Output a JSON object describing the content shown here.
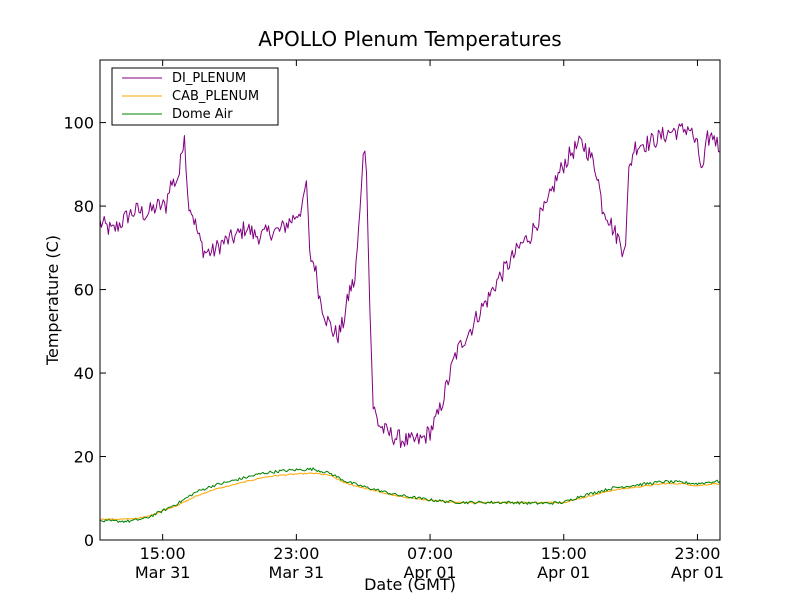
{
  "chart_data": {
    "type": "line",
    "title": "APOLLO Plenum Temperatures",
    "xlabel": "Date (GMT)",
    "ylabel": "Temperature (C)",
    "x_unit": "hours since Mar 31 00:00 GMT",
    "xlim": [
      11.25,
      48.35
    ],
    "ylim": [
      0,
      115
    ],
    "yticks": [
      0,
      20,
      40,
      60,
      80,
      100
    ],
    "xticks": [
      {
        "x": 15,
        "time": "15:00",
        "date": "Mar 31"
      },
      {
        "x": 23,
        "time": "23:00",
        "date": "Mar 31"
      },
      {
        "x": 31,
        "time": "07:00",
        "date": "Apr 01"
      },
      {
        "x": 39,
        "time": "15:00",
        "date": "Apr 01"
      },
      {
        "x": 47,
        "time": "23:00",
        "date": "Apr 01"
      }
    ],
    "legend_position": "top-left",
    "grid": false,
    "series": [
      {
        "name": "DI_PLENUM",
        "color": "#800080",
        "noise": 2.2,
        "points": [
          [
            11.25,
            76
          ],
          [
            12.0,
            74
          ],
          [
            12.5,
            76
          ],
          [
            13.0,
            78
          ],
          [
            13.5,
            79
          ],
          [
            14.0,
            78
          ],
          [
            14.7,
            80
          ],
          [
            15.2,
            80
          ],
          [
            15.4,
            85
          ],
          [
            15.8,
            86
          ],
          [
            16.0,
            88
          ],
          [
            16.3,
            98
          ],
          [
            16.5,
            82
          ],
          [
            16.8,
            78
          ],
          [
            17.2,
            72
          ],
          [
            17.5,
            69
          ],
          [
            18.0,
            69
          ],
          [
            18.5,
            71
          ],
          [
            19.0,
            72
          ],
          [
            19.5,
            73
          ],
          [
            20.0,
            75
          ],
          [
            20.5,
            73
          ],
          [
            21.0,
            73
          ],
          [
            21.5,
            74
          ],
          [
            22.0,
            74
          ],
          [
            22.5,
            76
          ],
          [
            22.8,
            77
          ],
          [
            23.0,
            78
          ],
          [
            23.4,
            80
          ],
          [
            23.6,
            86
          ],
          [
            23.8,
            68
          ],
          [
            24.1,
            66
          ],
          [
            24.4,
            58
          ],
          [
            24.8,
            53
          ],
          [
            25.2,
            50
          ],
          [
            25.5,
            49
          ],
          [
            25.8,
            52
          ],
          [
            26.2,
            60
          ],
          [
            26.5,
            62
          ],
          [
            26.8,
            78
          ],
          [
            27.0,
            94
          ],
          [
            27.2,
            90
          ],
          [
            27.4,
            55
          ],
          [
            27.6,
            32
          ],
          [
            27.9,
            28
          ],
          [
            28.3,
            26
          ],
          [
            29.0,
            24.5
          ],
          [
            29.8,
            23.5
          ],
          [
            30.5,
            24
          ],
          [
            31.0,
            26
          ],
          [
            31.5,
            30
          ],
          [
            32.0,
            37
          ],
          [
            32.5,
            44
          ],
          [
            33.0,
            48
          ],
          [
            33.5,
            51
          ],
          [
            34.0,
            55
          ],
          [
            34.5,
            58
          ],
          [
            35.0,
            62
          ],
          [
            35.5,
            65
          ],
          [
            36.0,
            68
          ],
          [
            36.5,
            71
          ],
          [
            37.0,
            73
          ],
          [
            37.5,
            77
          ],
          [
            38.0,
            80
          ],
          [
            38.5,
            86
          ],
          [
            39.0,
            90
          ],
          [
            39.5,
            93
          ],
          [
            40.0,
            95
          ],
          [
            40.3,
            94
          ],
          [
            40.6,
            92
          ],
          [
            41.0,
            88
          ],
          [
            41.3,
            80
          ],
          [
            41.6,
            78
          ],
          [
            42.0,
            74
          ],
          [
            42.3,
            72
          ],
          [
            42.5,
            70
          ],
          [
            42.7,
            72
          ],
          [
            42.9,
            88
          ],
          [
            43.2,
            94
          ],
          [
            43.6,
            95
          ],
          [
            44.0,
            95
          ],
          [
            44.5,
            96
          ],
          [
            45.0,
            97
          ],
          [
            45.5,
            98
          ],
          [
            46.0,
            98
          ],
          [
            46.5,
            99
          ],
          [
            47.0,
            94
          ],
          [
            47.3,
            88
          ],
          [
            47.6,
            96
          ],
          [
            48.0,
            97
          ],
          [
            48.35,
            93
          ]
        ]
      },
      {
        "name": "CAB_PLENUM",
        "color": "#ffa500",
        "noise": 0.15,
        "points": [
          [
            11.25,
            5
          ],
          [
            12.0,
            5
          ],
          [
            13.0,
            5
          ],
          [
            14.0,
            5.5
          ],
          [
            15.0,
            7
          ],
          [
            16.0,
            8.5
          ],
          [
            17.0,
            10.5
          ],
          [
            18.0,
            12
          ],
          [
            19.0,
            13
          ],
          [
            20.0,
            14
          ],
          [
            21.0,
            15
          ],
          [
            22.0,
            15.5
          ],
          [
            23.0,
            15.8
          ],
          [
            24.0,
            16
          ],
          [
            25.0,
            15.5
          ],
          [
            26.0,
            13.5
          ],
          [
            27.0,
            12.5
          ],
          [
            28.0,
            11.5
          ],
          [
            29.0,
            10.5
          ],
          [
            30.0,
            10
          ],
          [
            31.0,
            9.5
          ],
          [
            32.0,
            9.2
          ],
          [
            33.0,
            9
          ],
          [
            34.0,
            9
          ],
          [
            35.0,
            9
          ],
          [
            36.0,
            9
          ],
          [
            37.0,
            9
          ],
          [
            38.0,
            9
          ],
          [
            39.0,
            9
          ],
          [
            40.0,
            10
          ],
          [
            41.0,
            11
          ],
          [
            42.0,
            12
          ],
          [
            43.0,
            12.5
          ],
          [
            44.0,
            13
          ],
          [
            45.0,
            13.5
          ],
          [
            46.0,
            13.5
          ],
          [
            47.0,
            13
          ],
          [
            48.0,
            13.5
          ],
          [
            48.35,
            13.5
          ]
        ]
      },
      {
        "name": "Dome Air",
        "color": "#008000",
        "noise": 0.35,
        "points": [
          [
            11.25,
            4.5
          ],
          [
            12.0,
            4.5
          ],
          [
            13.0,
            4.5
          ],
          [
            14.0,
            5.2
          ],
          [
            15.0,
            7
          ],
          [
            16.0,
            9
          ],
          [
            17.0,
            11.5
          ],
          [
            18.0,
            13
          ],
          [
            19.0,
            14
          ],
          [
            20.0,
            15
          ],
          [
            21.0,
            16
          ],
          [
            22.0,
            16.5
          ],
          [
            23.0,
            16.8
          ],
          [
            24.0,
            17
          ],
          [
            25.0,
            16
          ],
          [
            26.0,
            14
          ],
          [
            27.0,
            12.8
          ],
          [
            28.0,
            11.8
          ],
          [
            29.0,
            10.8
          ],
          [
            30.0,
            10.2
          ],
          [
            31.0,
            9.6
          ],
          [
            32.0,
            9.2
          ],
          [
            33.0,
            9
          ],
          [
            34.0,
            9
          ],
          [
            35.0,
            9
          ],
          [
            36.0,
            9
          ],
          [
            37.0,
            8.8
          ],
          [
            38.0,
            8.8
          ],
          [
            39.0,
            9
          ],
          [
            40.0,
            10.5
          ],
          [
            41.0,
            11.5
          ],
          [
            42.0,
            12.5
          ],
          [
            43.0,
            13
          ],
          [
            44.0,
            13.5
          ],
          [
            45.0,
            14
          ],
          [
            46.0,
            13.8
          ],
          [
            47.0,
            13.5
          ],
          [
            48.0,
            14
          ],
          [
            48.35,
            14
          ]
        ]
      }
    ]
  }
}
